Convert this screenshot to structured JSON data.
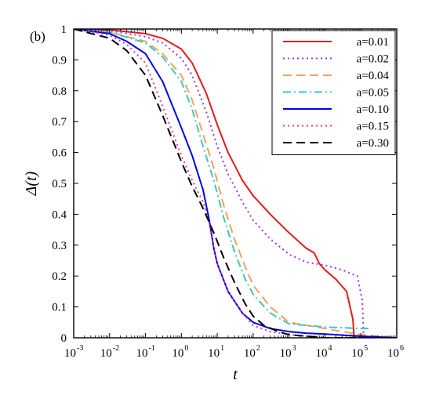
{
  "chart_data": {
    "type": "line",
    "panel_label": "(b)",
    "xlabel": "t",
    "ylabel": "Δ(t)",
    "xscale": "log",
    "xlim": [
      0.001,
      1000000
    ],
    "ylim": [
      0,
      1
    ],
    "x_ticks": [
      {
        "base": "10",
        "exp": "-3"
      },
      {
        "base": "10",
        "exp": "-2"
      },
      {
        "base": "10",
        "exp": "-1"
      },
      {
        "base": "10",
        "exp": "0"
      },
      {
        "base": "10",
        "exp": "1"
      },
      {
        "base": "10",
        "exp": "2"
      },
      {
        "base": "10",
        "exp": "3"
      },
      {
        "base": "10",
        "exp": "4"
      },
      {
        "base": "10",
        "exp": "5"
      },
      {
        "base": "10",
        "exp": "6"
      }
    ],
    "y_ticks": [
      "0",
      "0.1",
      "0.2",
      "0.3",
      "0.4",
      "0.5",
      "0.6",
      "0.7",
      "0.8",
      "0.9",
      "1"
    ],
    "grid": false,
    "legend_position": "top-right",
    "series": [
      {
        "name": "a=0.01",
        "color": "#e41a1c",
        "dash": "solid",
        "points": [
          [
            0.001,
            1.0
          ],
          [
            0.01,
            0.997
          ],
          [
            0.1,
            0.985
          ],
          [
            0.3,
            0.97
          ],
          [
            1,
            0.935
          ],
          [
            2,
            0.89
          ],
          [
            5,
            0.79
          ],
          [
            10,
            0.69
          ],
          [
            20,
            0.6
          ],
          [
            50,
            0.51
          ],
          [
            100,
            0.46
          ],
          [
            300,
            0.4
          ],
          [
            1000,
            0.34
          ],
          [
            3000,
            0.29
          ],
          [
            5000,
            0.275
          ],
          [
            7000,
            0.24
          ],
          [
            10000,
            0.22
          ],
          [
            20000,
            0.19
          ],
          [
            40000,
            0.15
          ],
          [
            60000,
            0.06
          ],
          [
            65000,
            0.0
          ]
        ]
      },
      {
        "name": "a=0.02",
        "color": "#9933ee",
        "dash": "dot",
        "points": [
          [
            0.001,
            1.0
          ],
          [
            0.01,
            0.995
          ],
          [
            0.1,
            0.975
          ],
          [
            0.3,
            0.955
          ],
          [
            1,
            0.905
          ],
          [
            2,
            0.85
          ],
          [
            5,
            0.73
          ],
          [
            10,
            0.62
          ],
          [
            20,
            0.53
          ],
          [
            50,
            0.44
          ],
          [
            100,
            0.38
          ],
          [
            300,
            0.32
          ],
          [
            1000,
            0.27
          ],
          [
            3000,
            0.245
          ],
          [
            10000,
            0.235
          ],
          [
            30000,
            0.22
          ],
          [
            80000,
            0.2
          ],
          [
            110000,
            0.12
          ],
          [
            120000,
            0.0
          ]
        ]
      },
      {
        "name": "a=0.04",
        "color": "#f4a060",
        "dash": "dash",
        "points": [
          [
            0.001,
            1.0
          ],
          [
            0.01,
            0.99
          ],
          [
            0.1,
            0.96
          ],
          [
            0.3,
            0.92
          ],
          [
            1,
            0.85
          ],
          [
            2,
            0.77
          ],
          [
            4,
            0.66
          ],
          [
            8,
            0.55
          ],
          [
            15,
            0.43
          ],
          [
            30,
            0.32
          ],
          [
            60,
            0.23
          ],
          [
            100,
            0.17
          ],
          [
            300,
            0.1
          ],
          [
            1000,
            0.05
          ],
          [
            10000,
            0.03
          ],
          [
            100000,
            0.01
          ],
          [
            1000000,
            0.0
          ]
        ]
      },
      {
        "name": "a=0.05",
        "color": "#3cc8c0",
        "dash": "dashdot",
        "points": [
          [
            0.001,
            1.0
          ],
          [
            0.01,
            0.99
          ],
          [
            0.1,
            0.955
          ],
          [
            0.3,
            0.91
          ],
          [
            1,
            0.83
          ],
          [
            2,
            0.74
          ],
          [
            4,
            0.62
          ],
          [
            8,
            0.51
          ],
          [
            15,
            0.39
          ],
          [
            30,
            0.28
          ],
          [
            60,
            0.19
          ],
          [
            100,
            0.14
          ],
          [
            300,
            0.08
          ],
          [
            1000,
            0.045
          ],
          [
            10000,
            0.035
          ],
          [
            100000,
            0.03
          ],
          [
            200000,
            0.03
          ]
        ]
      },
      {
        "name": "a=0.10",
        "color": "#0000ee",
        "dash": "solid",
        "points": [
          [
            0.001,
            1.0
          ],
          [
            0.01,
            0.985
          ],
          [
            0.03,
            0.96
          ],
          [
            0.1,
            0.92
          ],
          [
            0.3,
            0.83
          ],
          [
            1,
            0.68
          ],
          [
            2,
            0.59
          ],
          [
            4,
            0.48
          ],
          [
            6,
            0.38
          ],
          [
            8,
            0.29
          ],
          [
            10,
            0.24
          ],
          [
            20,
            0.15
          ],
          [
            50,
            0.08
          ],
          [
            100,
            0.05
          ],
          [
            300,
            0.03
          ],
          [
            1000,
            0.02
          ],
          [
            3000,
            0.015
          ],
          [
            10000,
            0.012
          ],
          [
            100000,
            0.005
          ],
          [
            1000000,
            0.0
          ]
        ]
      },
      {
        "name": "a=0.15",
        "color": "#ee3399",
        "dash": "dot",
        "points": [
          [
            0.001,
            1.0
          ],
          [
            0.01,
            0.98
          ],
          [
            0.03,
            0.95
          ],
          [
            0.1,
            0.89
          ],
          [
            0.3,
            0.75
          ],
          [
            1,
            0.59
          ],
          [
            2,
            0.51
          ],
          [
            4,
            0.44
          ],
          [
            6,
            0.37
          ],
          [
            8,
            0.29
          ],
          [
            10,
            0.24
          ],
          [
            20,
            0.15
          ],
          [
            50,
            0.08
          ],
          [
            100,
            0.04
          ],
          [
            300,
            0.02
          ],
          [
            1000,
            0.01
          ],
          [
            10000,
            0.0
          ],
          [
            1000000,
            0.0
          ]
        ]
      },
      {
        "name": "a=0.30",
        "color": "#000000",
        "dash": "dash",
        "points": [
          [
            0.001,
            1.0
          ],
          [
            0.01,
            0.97
          ],
          [
            0.03,
            0.93
          ],
          [
            0.1,
            0.85
          ],
          [
            0.3,
            0.72
          ],
          [
            1,
            0.57
          ],
          [
            2,
            0.49
          ],
          [
            4,
            0.42
          ],
          [
            8,
            0.34
          ],
          [
            15,
            0.26
          ],
          [
            30,
            0.18
          ],
          [
            60,
            0.11
          ],
          [
            100,
            0.07
          ],
          [
            200,
            0.04
          ],
          [
            500,
            0.02
          ],
          [
            1000,
            0.01
          ],
          [
            10000,
            0.0
          ],
          [
            1000000,
            0.0
          ]
        ]
      }
    ]
  }
}
